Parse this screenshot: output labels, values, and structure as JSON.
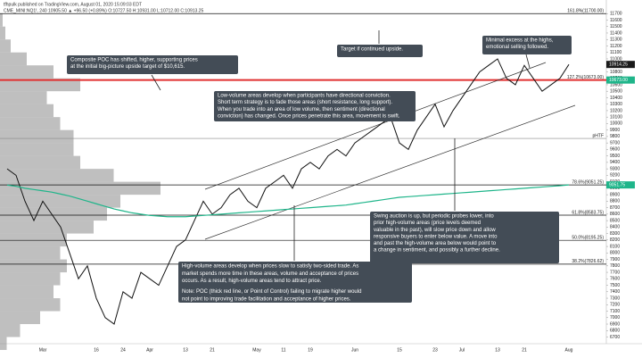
{
  "chart_data": {
    "type": "line",
    "title": "tfhpulk published on TradingView.com, August 01, 2020 15:09:03 EDT",
    "subtitle": "CME_MINI:NQ1!, 240 10905.50 ▲ +96.50 (+0.89%) O:10727.50 H:10931.00 L:10712.00 C:10913.25",
    "categories": [
      null,
      null,
      null,
      null,
      "Mar",
      null,
      null,
      null,
      null,
      null,
      "16",
      null,
      null,
      "24",
      null,
      null,
      "Apr",
      null,
      null,
      null,
      "13",
      null,
      null,
      "21",
      null,
      null,
      null,
      null,
      "May",
      null,
      null,
      "11",
      null,
      null,
      "19",
      null,
      null,
      null,
      null,
      "Jun",
      null,
      null,
      null,
      null,
      "15",
      null,
      null,
      null,
      "23",
      null,
      null,
      "Jul",
      null,
      null,
      null,
      "13",
      null,
      null,
      "21",
      null,
      null,
      null,
      null,
      "Aug"
    ],
    "series": [
      {
        "color": "#111111",
        "values": [
          9300,
          9200,
          8800,
          8500,
          8800,
          8600,
          8400,
          8000,
          7600,
          7800,
          7300,
          7000,
          6900,
          7400,
          7300,
          7700,
          7600,
          7500,
          7800,
          8100,
          8200,
          8500,
          8800,
          8600,
          8700,
          8900,
          9000,
          8800,
          8700,
          9000,
          9100,
          9200,
          9000,
          9300,
          9400,
          9300,
          9500,
          9600,
          9500,
          9700,
          9800,
          9900,
          10000,
          10100,
          9700,
          9600,
          9900,
          10100,
          10300,
          9950,
          10200,
          10400,
          10600,
          10800,
          10900,
          11000,
          10700,
          10600,
          10900,
          10700,
          10500,
          10600,
          10700,
          10914.25
        ]
      },
      {
        "color": "#1fb58a",
        "values": [
          9050,
          9030,
          9000,
          8980,
          8960,
          8940,
          8910,
          8880,
          8840,
          8800,
          8760,
          8720,
          8680,
          8650,
          8620,
          8600,
          8580,
          8570,
          8560,
          8560,
          8560,
          8570,
          8580,
          8590,
          8600,
          8610,
          8620,
          8630,
          8640,
          8650,
          8660,
          8670,
          8680,
          8690,
          8700,
          8710,
          8720,
          8730,
          8740,
          8760,
          8780,
          8800,
          8820,
          8840,
          8860,
          8870,
          8880,
          8890,
          8900,
          8910,
          8920,
          8930,
          8940,
          8950,
          8960,
          8970,
          8980,
          8990,
          9000,
          9010,
          9020,
          9030,
          9040,
          9051.75
        ]
      }
    ],
    "ylim": [
      6500,
      11800
    ],
    "yticks": [
      11700,
      11600,
      11500,
      11400,
      11300,
      11200,
      11100,
      11000,
      10900,
      10800,
      10700,
      10600,
      10500,
      10400,
      10300,
      10200,
      10100,
      10000,
      9900,
      9800,
      9700,
      9600,
      9500,
      9400,
      9300,
      9200,
      9100,
      9000,
      8900,
      8800,
      8700,
      8600,
      8500,
      8400,
      8300,
      8200,
      8100,
      8000,
      7900,
      7800,
      7700,
      7600,
      7500,
      7400,
      7300,
      7200,
      7100,
      7000,
      6900,
      6800,
      6700,
      6600
    ],
    "levels": [
      {
        "value": 11700,
        "label": "161.8%(11700.00)",
        "color": "#111111"
      },
      {
        "value": 10673,
        "label": "127.2%(10673.00)",
        "color": "#e03030"
      },
      {
        "value": 9770,
        "label": "pHTF",
        "color": "#888888"
      },
      {
        "value": 9051.25,
        "label": "78.6%(9051.25)",
        "color": "#111111"
      },
      {
        "value": 8583.75,
        "label": "61.8%(8583.75)",
        "color": "#111111"
      },
      {
        "value": 8195.25,
        "label": "50.0%(8195.25)",
        "color": "#111111"
      },
      {
        "value": 7826.62,
        "label": "38.2%(7826.62)",
        "color": "#111111"
      }
    ],
    "price_tags": [
      {
        "value": 10914.25,
        "color": "#1a1a1a"
      },
      {
        "value": 10673,
        "label": "10673.00",
        "color": "#1fb58a"
      },
      {
        "value": 9051.75,
        "color": "#1fb58a"
      }
    ],
    "volume_profile": {
      "color": "#8a8a8a",
      "levels": [
        6600,
        6800,
        7000,
        7200,
        7400,
        7600,
        7800,
        8000,
        8200,
        8400,
        8600,
        8800,
        9000,
        9200,
        9400,
        9600,
        9800,
        10000,
        10200,
        10400,
        10600,
        10800,
        11000,
        11200,
        11400,
        11600
      ],
      "values": [
        5,
        15,
        30,
        45,
        40,
        45,
        50,
        45,
        50,
        70,
        80,
        90,
        120,
        85,
        60,
        55,
        55,
        45,
        40,
        35,
        60,
        40,
        20,
        8,
        4,
        2
      ]
    },
    "annotations": [
      {
        "lines": [
          "Composite POC has shifted, higher, supporting prices",
          "at the initial big-picture upside target of $10,615."
        ]
      },
      {
        "lines": [
          "Target if continued upside."
        ]
      },
      {
        "lines": [
          "Minimal excess at the highs,",
          "emotional selling followed."
        ]
      },
      {
        "lines": [
          "Low-volume areas develop when participants have directional conviction.",
          "Short term strategy is to fade those areas (short resistance, long support).",
          "When you trade into an area of low volume, then sentiment (directional",
          "conviction) has changed. Once prices penetrate this area, movement is swift."
        ]
      },
      {
        "lines": [
          "Swing auction is up, but periodic probes lower, into",
          "prior high-volume areas (price levels deemed",
          "valuable in the past), will slow price down and allow",
          "responsive buyers to enter below value. A move into",
          "and past the high-volume area below would point to",
          "a change in sentiment, and possibly a further decline."
        ]
      },
      {
        "lines": [
          "High-volume areas develop when prices slow to satisfy two-sided trade. As",
          "market spends more time in these areas, volume and acceptance of prices",
          "occurs. As a result, high-volume areas tend to attract price.",
          "Note: POC (thick red line, or Point of Control) failing to migrate higher would",
          "not point to improving trade facilitation and acceptance of higher prices."
        ]
      }
    ]
  }
}
